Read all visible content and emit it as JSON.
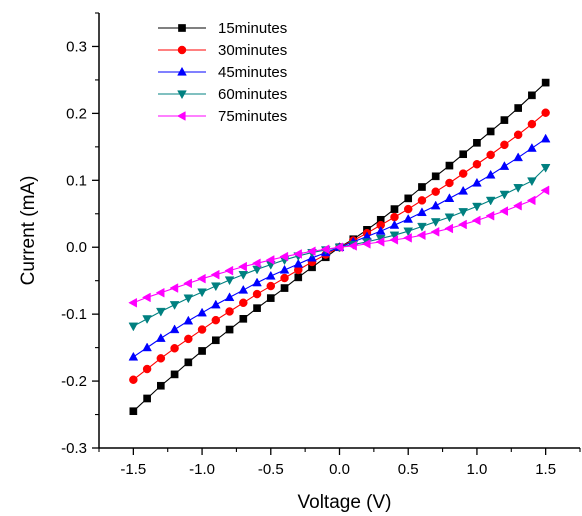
{
  "chart_data": {
    "type": "line",
    "title": "",
    "xlabel": "Voltage (V)",
    "ylabel": "Current (mA)",
    "xlim": [
      -1.75,
      1.75
    ],
    "ylim": [
      -0.3,
      0.35
    ],
    "xticks": [
      -1.5,
      -1.0,
      -0.5,
      0.0,
      0.5,
      1.0,
      1.5
    ],
    "xtick_labels": [
      "-1.5",
      "-1.0",
      "-0.5",
      "0.0",
      "0.5",
      "1.0",
      "1.5"
    ],
    "yticks": [
      -0.3,
      -0.2,
      -0.1,
      0.0,
      0.1,
      0.2,
      0.3
    ],
    "ytick_labels": [
      "-0.3",
      "-0.2",
      "-0.1",
      "0.0",
      "0.1",
      "0.2",
      "0.3"
    ],
    "grid": false,
    "legend_position": "top-left",
    "series": [
      {
        "name": "15minutes",
        "color": "#000000",
        "marker": "square",
        "x": [
          -1.5,
          -1.4,
          -1.3,
          -1.2,
          -1.1,
          -1.0,
          -0.9,
          -0.8,
          -0.7,
          -0.6,
          -0.5,
          -0.4,
          -0.3,
          -0.2,
          -0.1,
          0.0,
          0.1,
          0.2,
          0.3,
          0.4,
          0.5,
          0.6,
          0.7,
          0.8,
          0.9,
          1.0,
          1.1,
          1.2,
          1.3,
          1.4,
          1.5
        ],
        "y": [
          -0.245,
          -0.226,
          -0.207,
          -0.19,
          -0.172,
          -0.155,
          -0.139,
          -0.123,
          -0.107,
          -0.091,
          -0.076,
          -0.061,
          -0.045,
          -0.03,
          -0.015,
          0.0,
          0.012,
          0.026,
          0.041,
          0.057,
          0.073,
          0.09,
          0.106,
          0.122,
          0.139,
          0.156,
          0.173,
          0.19,
          0.208,
          0.227,
          0.246
        ]
      },
      {
        "name": "30minutes",
        "color": "#ff0000",
        "marker": "circle",
        "x": [
          -1.5,
          -1.4,
          -1.3,
          -1.2,
          -1.1,
          -1.0,
          -0.9,
          -0.8,
          -0.7,
          -0.6,
          -0.5,
          -0.4,
          -0.3,
          -0.2,
          -0.1,
          0.0,
          0.1,
          0.2,
          0.3,
          0.4,
          0.5,
          0.6,
          0.7,
          0.8,
          0.9,
          1.0,
          1.1,
          1.2,
          1.3,
          1.4,
          1.5
        ],
        "y": [
          -0.198,
          -0.182,
          -0.166,
          -0.151,
          -0.137,
          -0.123,
          -0.109,
          -0.096,
          -0.083,
          -0.07,
          -0.058,
          -0.046,
          -0.034,
          -0.022,
          -0.011,
          0.0,
          0.01,
          0.021,
          0.033,
          0.045,
          0.057,
          0.07,
          0.083,
          0.096,
          0.11,
          0.124,
          0.138,
          0.153,
          0.168,
          0.184,
          0.201
        ]
      },
      {
        "name": "45minutes",
        "color": "#0000ff",
        "marker": "triangle-up",
        "x": [
          -1.5,
          -1.4,
          -1.3,
          -1.2,
          -1.1,
          -1.0,
          -0.9,
          -0.8,
          -0.7,
          -0.6,
          -0.5,
          -0.4,
          -0.3,
          -0.2,
          -0.1,
          0.0,
          0.1,
          0.2,
          0.3,
          0.4,
          0.5,
          0.6,
          0.7,
          0.8,
          0.9,
          1.0,
          1.1,
          1.2,
          1.3,
          1.4,
          1.5
        ],
        "y": [
          -0.164,
          -0.15,
          -0.136,
          -0.123,
          -0.11,
          -0.098,
          -0.086,
          -0.075,
          -0.064,
          -0.053,
          -0.043,
          -0.034,
          -0.025,
          -0.016,
          -0.008,
          0.0,
          0.008,
          0.016,
          0.024,
          0.033,
          0.042,
          0.052,
          0.062,
          0.073,
          0.084,
          0.096,
          0.108,
          0.121,
          0.134,
          0.148,
          0.162
        ]
      },
      {
        "name": "60minutes",
        "color": "#008080",
        "marker": "triangle-down",
        "x": [
          -1.5,
          -1.4,
          -1.3,
          -1.2,
          -1.1,
          -1.0,
          -0.9,
          -0.8,
          -0.7,
          -0.6,
          -0.5,
          -0.4,
          -0.3,
          -0.2,
          -0.1,
          0.0,
          0.1,
          0.2,
          0.3,
          0.4,
          0.5,
          0.6,
          0.7,
          0.8,
          0.9,
          1.0,
          1.1,
          1.2,
          1.3,
          1.4,
          1.5
        ],
        "y": [
          -0.118,
          -0.107,
          -0.096,
          -0.086,
          -0.076,
          -0.067,
          -0.058,
          -0.049,
          -0.041,
          -0.033,
          -0.026,
          -0.019,
          -0.013,
          -0.008,
          -0.004,
          0.0,
          0.004,
          0.008,
          0.013,
          0.018,
          0.024,
          0.031,
          0.038,
          0.045,
          0.053,
          0.061,
          0.07,
          0.079,
          0.089,
          0.099,
          0.119
        ]
      },
      {
        "name": "75minutes",
        "color": "#ff00ff",
        "marker": "triangle-left",
        "x": [
          -1.5,
          -1.4,
          -1.3,
          -1.2,
          -1.1,
          -1.0,
          -0.9,
          -0.8,
          -0.7,
          -0.6,
          -0.5,
          -0.4,
          -0.3,
          -0.2,
          -0.1,
          0.0,
          0.1,
          0.2,
          0.3,
          0.4,
          0.5,
          0.6,
          0.7,
          0.8,
          0.9,
          1.0,
          1.1,
          1.2,
          1.3,
          1.4,
          1.5
        ],
        "y": [
          -0.083,
          -0.075,
          -0.068,
          -0.061,
          -0.054,
          -0.047,
          -0.041,
          -0.035,
          -0.029,
          -0.024,
          -0.019,
          -0.014,
          -0.01,
          -0.006,
          -0.003,
          0.0,
          0.002,
          0.005,
          0.008,
          0.011,
          0.014,
          0.018,
          0.023,
          0.028,
          0.034,
          0.04,
          0.047,
          0.054,
          0.062,
          0.07,
          0.085
        ]
      }
    ]
  }
}
